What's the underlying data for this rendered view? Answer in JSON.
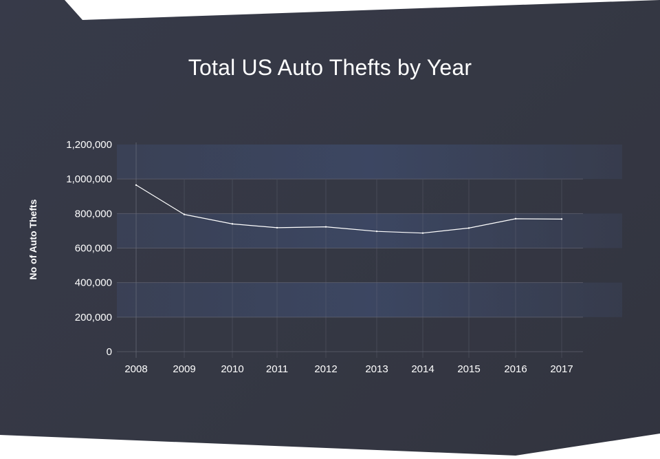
{
  "chart_data": {
    "type": "line",
    "title": "Total US Auto Thefts by Year",
    "ylabel": "No  of Auto Thefts",
    "xlabel": "",
    "categories": [
      "2008",
      "2009",
      "2010",
      "2011",
      "2012",
      "2013",
      "2014",
      "2015",
      "2016",
      "2017"
    ],
    "series": [
      {
        "values": [
          965000,
          795000,
          740000,
          718000,
          723000,
          697000,
          687000,
          716000,
          770000,
          768000
        ]
      }
    ],
    "ylim": [
      0,
      1200000
    ],
    "yticks": [
      "0",
      "200,000",
      "400,000",
      "600,000",
      "800,000",
      "1,000,000",
      "1,200,000"
    ],
    "grid": true,
    "colors": {
      "background": "#363946",
      "line": "#ffffff",
      "band": "#3b4660",
      "grid": "#6a6d7a",
      "text": "#ffffff"
    }
  }
}
